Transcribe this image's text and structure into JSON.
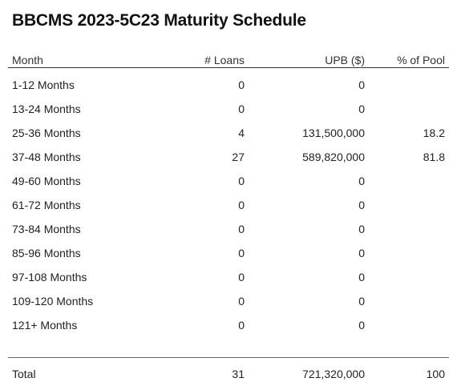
{
  "title": "BBCMS 2023-5C23 Maturity Schedule",
  "columns": {
    "month": "Month",
    "loans": "# Loans",
    "upb": "UPB ($)",
    "pct": "% of Pool"
  },
  "rows": [
    {
      "month": "1-12 Months",
      "loans": "0",
      "upb": "0",
      "pct": ""
    },
    {
      "month": "13-24 Months",
      "loans": "0",
      "upb": "0",
      "pct": ""
    },
    {
      "month": "25-36 Months",
      "loans": "4",
      "upb": "131,500,000",
      "pct": "18.2"
    },
    {
      "month": "37-48 Months",
      "loans": "27",
      "upb": "589,820,000",
      "pct": "81.8"
    },
    {
      "month": "49-60 Months",
      "loans": "0",
      "upb": "0",
      "pct": ""
    },
    {
      "month": "61-72 Months",
      "loans": "0",
      "upb": "0",
      "pct": ""
    },
    {
      "month": "73-84 Months",
      "loans": "0",
      "upb": "0",
      "pct": ""
    },
    {
      "month": "85-96 Months",
      "loans": "0",
      "upb": "0",
      "pct": ""
    },
    {
      "month": "97-108 Months",
      "loans": "0",
      "upb": "0",
      "pct": ""
    },
    {
      "month": "109-120 Months",
      "loans": "0",
      "upb": "0",
      "pct": ""
    },
    {
      "month": "121+ Months",
      "loans": "0",
      "upb": "0",
      "pct": ""
    }
  ],
  "total": {
    "label": "Total",
    "loans": "31",
    "upb": "721,320,000",
    "pct": "100"
  }
}
